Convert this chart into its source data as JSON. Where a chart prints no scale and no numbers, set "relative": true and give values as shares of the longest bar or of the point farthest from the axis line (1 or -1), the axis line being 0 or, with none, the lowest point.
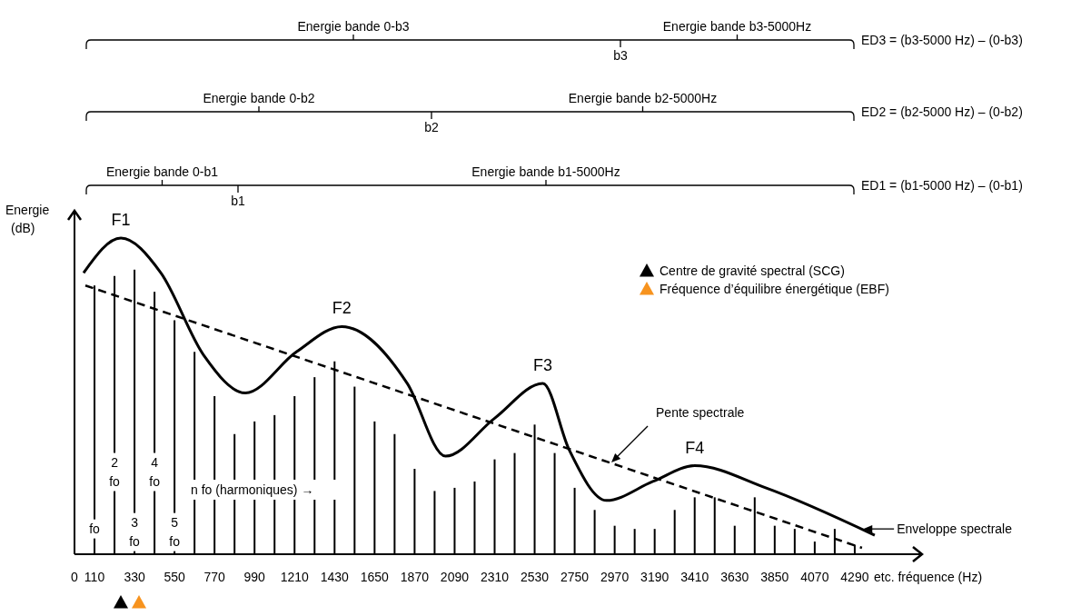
{
  "chart_data": {
    "type": "bar",
    "relative": true,
    "xlabel": "etc. fréquence (Hz)",
    "ylabel": "Energie\n(dB)",
    "xlim": [
      0,
      4660
    ],
    "xticks": [
      0,
      110,
      330,
      550,
      770,
      990,
      1210,
      1430,
      1650,
      1870,
      2090,
      2310,
      2530,
      2750,
      2970,
      3190,
      3410,
      3630,
      3850,
      4070,
      4290
    ],
    "series": [
      {
        "color": "#000000",
        "x": [
          110,
          220,
          330,
          440,
          550,
          660,
          770,
          880,
          990,
          1100,
          1210,
          1320,
          1430,
          1540,
          1650,
          1760,
          1870,
          1980,
          2090,
          2200,
          2310,
          2420,
          2530,
          2640,
          2750,
          2860,
          2970,
          3080,
          3190,
          3300,
          3410,
          3520,
          3630,
          3740,
          3850,
          3960,
          4070,
          4180,
          4290
        ],
        "values": [
          0.85,
          0.88,
          0.9,
          0.83,
          0.74,
          0.64,
          0.5,
          0.38,
          0.42,
          0.44,
          0.5,
          0.56,
          0.61,
          0.53,
          0.42,
          0.38,
          0.27,
          0.2,
          0.21,
          0.23,
          0.3,
          0.32,
          0.41,
          0.32,
          0.21,
          0.14,
          0.09,
          0.08,
          0.08,
          0.14,
          0.18,
          0.18,
          0.09,
          0.18,
          0.09,
          0.08,
          0.04,
          0.08,
          0.03
        ]
      },
      {
        "type": "line",
        "color": "#000000",
        "line_style": "solid",
        "x": [
          50,
          255,
          475,
          710,
          940,
          1220,
          1470,
          1830,
          2040,
          2310,
          2575,
          2720,
          2925,
          3180,
          3410,
          3800,
          4400
        ],
        "values": [
          0.89,
          1,
          0.89,
          0.63,
          0.51,
          0.64,
          0.72,
          0.54,
          0.31,
          0.43,
          0.54,
          0.33,
          0.17,
          0.23,
          0.28,
          0.21,
          0.06
        ]
      },
      {
        "type": "line",
        "color": "#000000",
        "line_style": "dashed",
        "x": [
          60,
          4330
        ],
        "values": [
          0.85,
          0.02
        ]
      }
    ],
    "annotations": [
      {
        "text": "F1",
        "x": 255,
        "y": 1
      },
      {
        "text": "F2",
        "x": 1470,
        "y": 0.72
      },
      {
        "text": "F3",
        "x": 2575,
        "y": 0.54
      },
      {
        "text": "F4",
        "x": 3410,
        "y": 0.28
      },
      {
        "text": "Pente spectrale",
        "x": 2952,
        "y": 0.29
      },
      {
        "text": "Enveloppe spectrale",
        "x": 4336,
        "y": 0.08
      },
      {
        "text": "fo",
        "x": 110,
        "y": 0.08
      },
      {
        "text": "2\nfo",
        "x": 220,
        "y": 0.26
      },
      {
        "text": "3\nfo",
        "x": 330,
        "y": 0.07
      },
      {
        "text": "4\nfo",
        "x": 440,
        "y": 0.26
      },
      {
        "text": "5\nfo",
        "x": 550,
        "y": 0.07
      },
      "n fo (harmoniques) →",
      "Energie bande 0-b1",
      "Energie bande b1-5000Hz",
      "Energie bande 0-b2",
      "Energie bande b2-5000Hz",
      "Energie bande 0-b3",
      "Energie bande b3-5000Hz",
      "b1",
      "b2",
      "b3",
      "ED1 = (b1-5000 Hz) – (0-b1)",
      "ED2 = (b2-5000 Hz) – (0-b2)",
      "ED3 = (b3-5000 Hz) – (0-b3)",
      "Centre de gravité spectral (SCG)",
      "Fréquence d’équilibre énergétique (EBF)"
    ]
  }
}
